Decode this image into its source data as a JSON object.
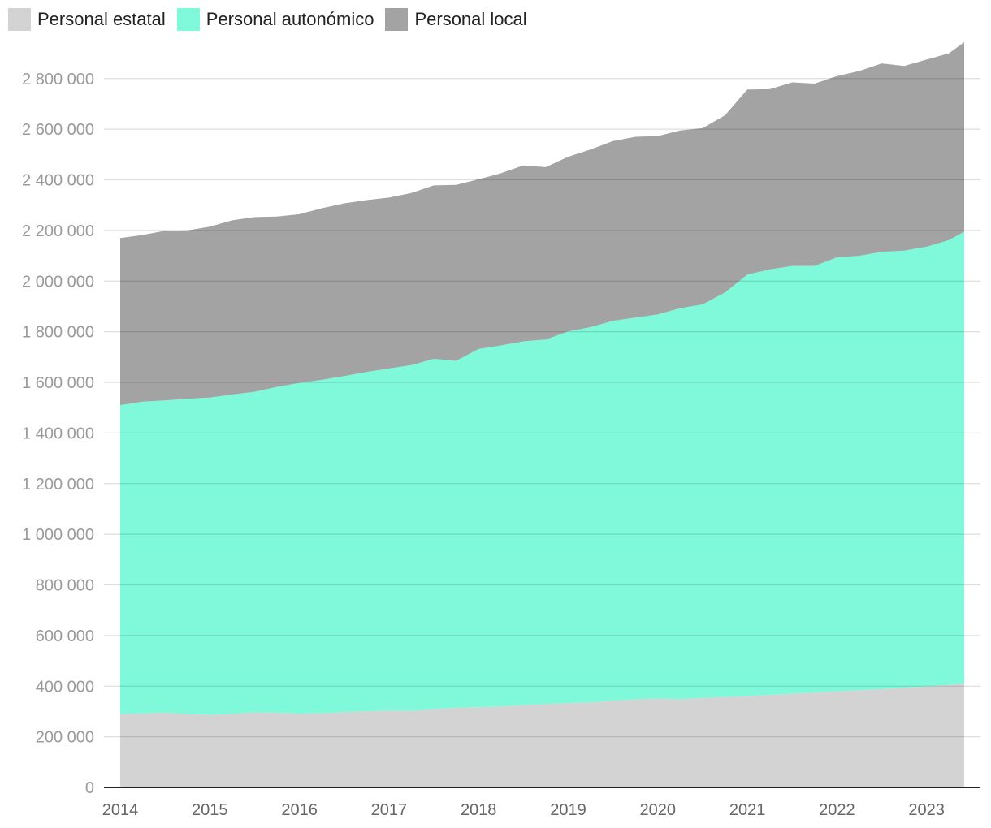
{
  "chart_data": {
    "type": "area",
    "stacked": true,
    "legend_position": "top-left",
    "grid": true,
    "ylim": [
      0,
      2950000
    ],
    "xlim": [
      2014.0,
      2023.42
    ],
    "y_ticks": [
      0,
      200000,
      400000,
      600000,
      800000,
      1000000,
      1200000,
      1400000,
      1600000,
      1800000,
      2000000,
      2200000,
      2400000,
      2600000,
      2800000
    ],
    "y_tick_labels": [
      "0",
      "200 000",
      "400 000",
      "600 000",
      "800 000",
      "1 000 000",
      "1 200 000",
      "1 400 000",
      "1 600 000",
      "1 800 000",
      "2 000 000",
      "2 200 000",
      "2 400 000",
      "2 600 000",
      "2 800 000"
    ],
    "x_ticks": [
      2014,
      2015,
      2016,
      2017,
      2018,
      2019,
      2020,
      2021,
      2022,
      2023
    ],
    "x_tick_labels": [
      "2014",
      "2015",
      "2016",
      "2017",
      "2018",
      "2019",
      "2020",
      "2021",
      "2022",
      "2023"
    ],
    "x": [
      2014.0,
      2014.25,
      2014.5,
      2014.75,
      2015.0,
      2015.25,
      2015.5,
      2015.75,
      2016.0,
      2016.25,
      2016.5,
      2016.75,
      2017.0,
      2017.25,
      2017.5,
      2017.75,
      2018.0,
      2018.25,
      2018.5,
      2018.75,
      2019.0,
      2019.25,
      2019.5,
      2019.75,
      2020.0,
      2020.25,
      2020.5,
      2020.75,
      2021.0,
      2021.25,
      2021.5,
      2021.75,
      2022.0,
      2022.25,
      2022.5,
      2022.75,
      2023.0,
      2023.25,
      2023.42
    ],
    "series": [
      {
        "name": "Personal estatal",
        "color": "#d3d3d3",
        "values": [
          290000,
          292000,
          296000,
          289000,
          287000,
          290000,
          297000,
          295000,
          291000,
          293000,
          298000,
          301000,
          304000,
          302000,
          309000,
          315000,
          317000,
          319000,
          325000,
          330000,
          333000,
          336000,
          343000,
          348000,
          351000,
          349000,
          353000,
          357000,
          360000,
          366000,
          370000,
          375000,
          380000,
          384000,
          388000,
          393000,
          399000,
          405000,
          412000
        ]
      },
      {
        "name": "Personal autonómico",
        "color": "#7ff9da",
        "values": [
          1220000,
          1232000,
          1233000,
          1246000,
          1253000,
          1262000,
          1266000,
          1287000,
          1307000,
          1317000,
          1327000,
          1340000,
          1351000,
          1366000,
          1384000,
          1370000,
          1415000,
          1427000,
          1437000,
          1439000,
          1468000,
          1482000,
          1500000,
          1508000,
          1517000,
          1544000,
          1555000,
          1598000,
          1666000,
          1680000,
          1690000,
          1685000,
          1714000,
          1716000,
          1728000,
          1727000,
          1737000,
          1757000,
          1783000
        ]
      },
      {
        "name": "Personal local",
        "color": "#a3a3a3",
        "values": [
          660000,
          658000,
          670000,
          665000,
          675000,
          688000,
          690000,
          673000,
          666000,
          678000,
          682000,
          679000,
          675000,
          680000,
          685000,
          695000,
          670000,
          680000,
          695000,
          681000,
          690000,
          702000,
          710000,
          714000,
          705000,
          702000,
          696000,
          700000,
          731000,
          712000,
          725000,
          720000,
          716000,
          730000,
          744000,
          730000,
          739000,
          738000,
          749000
        ]
      }
    ]
  }
}
